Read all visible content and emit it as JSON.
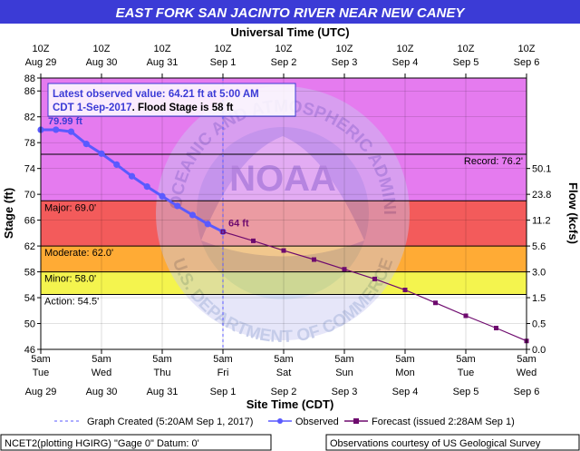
{
  "title": "EAST FORK SAN JACINTO RIVER NEAR NEW CANEY",
  "top_axis_title": "Universal Time (UTC)",
  "bottom_axis_title": "Site Time (CDT)",
  "left_axis_title": "Stage (ft)",
  "right_axis_title": "Flow (kcfs)",
  "top_ticks": [
    {
      "l1": "10Z",
      "l2": "Aug 29"
    },
    {
      "l1": "10Z",
      "l2": "Aug 30"
    },
    {
      "l1": "10Z",
      "l2": "Aug 31"
    },
    {
      "l1": "10Z",
      "l2": "Sep 1"
    },
    {
      "l1": "10Z",
      "l2": "Sep 2"
    },
    {
      "l1": "10Z",
      "l2": "Sep 3"
    },
    {
      "l1": "10Z",
      "l2": "Sep 4"
    },
    {
      "l1": "10Z",
      "l2": "Sep 5"
    },
    {
      "l1": "10Z",
      "l2": "Sep 6"
    }
  ],
  "bottom_ticks": [
    {
      "l1": "5am",
      "l2": "Tue",
      "l3": "Aug 29"
    },
    {
      "l1": "5am",
      "l2": "Wed",
      "l3": "Aug 30"
    },
    {
      "l1": "5am",
      "l2": "Thu",
      "l3": "Aug 31"
    },
    {
      "l1": "5am",
      "l2": "Fri",
      "l3": "Sep 1"
    },
    {
      "l1": "5am",
      "l2": "Sat",
      "l3": "Sep 2"
    },
    {
      "l1": "5am",
      "l2": "Sun",
      "l3": "Sep 3"
    },
    {
      "l1": "5am",
      "l2": "Mon",
      "l3": "Sep 4"
    },
    {
      "l1": "5am",
      "l2": "Tue",
      "l3": "Sep 5"
    },
    {
      "l1": "5am",
      "l2": "Wed",
      "l3": "Sep 6"
    }
  ],
  "flow_ticks": [
    {
      "label": "50.1",
      "stage": 74
    },
    {
      "label": "23.8",
      "stage": 70
    },
    {
      "label": "11.2",
      "stage": 66
    },
    {
      "label": "5.6",
      "stage": 62
    },
    {
      "label": "3.0",
      "stage": 58
    },
    {
      "label": "1.5",
      "stage": 54
    },
    {
      "label": "0.5",
      "stage": 50
    },
    {
      "label": "0.0",
      "stage": 46
    }
  ],
  "info_box": {
    "line1": "Latest observed value: 64.21 ft at 5:00 AM",
    "line2a": "CDT 1-Sep-2017",
    "line2b": ". Flood Stage is 58 ft"
  },
  "watermark": {
    "upper": "NATIONAL OCEANIC AND ATMOSPHERIC ADMINISTRATION",
    "lower": "U.S. DEPARTMENT OF COMMERCE",
    "center": "NOAA"
  },
  "legend": {
    "created": "Graph Created (5:20AM Sep 1, 2017)",
    "observed": "Observed",
    "forecast": "Forecast (issued 2:28AM Sep 1)"
  },
  "footer": {
    "left": "NCET2(plotting HGIRG) \"Gage 0\" Datum: 0'",
    "right": "Observations courtesy of US Geological Survey"
  },
  "colors": {
    "major": "#e57bef",
    "major_upper": "#d988f3",
    "moderate": "#f35b5b",
    "minor": "#ffab35",
    "action": "#f4f44e",
    "normal": "#ffffff",
    "observed": "#5a5aff",
    "forecast": "#6e0a6e",
    "title_bg": "#3b3bd6",
    "info_text": "#3b3bd6",
    "info_red": "#cc0000"
  },
  "chart_data": {
    "type": "line",
    "title": "EAST FORK SAN JACINTO RIVER NEAR NEW CANEY",
    "xlabel": "Site Time (CDT)",
    "ylabel": "Stage (ft)",
    "y2label": "Flow (kcfs)",
    "ylim": [
      46,
      88
    ],
    "xlim": [
      "2017-08-29 05:00",
      "2017-09-06 05:00"
    ],
    "yticks": [
      46,
      50,
      54,
      58,
      62,
      66,
      70,
      74,
      78,
      82,
      86,
      88
    ],
    "thresholds": [
      {
        "name": "Record",
        "label": "Record: 76.2'",
        "value": 76.2
      },
      {
        "name": "Major",
        "label": "Major: 69.0'",
        "value": 69.0
      },
      {
        "name": "Moderate",
        "label": "Moderate: 62.0'",
        "value": 62.0
      },
      {
        "name": "Minor",
        "label": "Minor: 58.0'",
        "value": 58.0
      },
      {
        "name": "Action",
        "label": "Action: 54.5'",
        "value": 54.5
      }
    ],
    "annotations": [
      {
        "label": "79.99 ft",
        "x": "2017-08-29 05:00",
        "y": 79.99
      },
      {
        "label": "64 ft",
        "x": "2017-09-01 05:00",
        "y": 64.21
      }
    ],
    "series": [
      {
        "name": "Observed",
        "x": [
          "2017-08-29 05:00",
          "2017-08-29 11:00",
          "2017-08-29 17:00",
          "2017-08-29 23:00",
          "2017-08-30 05:00",
          "2017-08-30 11:00",
          "2017-08-30 17:00",
          "2017-08-30 23:00",
          "2017-08-31 05:00",
          "2017-08-31 11:00",
          "2017-08-31 17:00",
          "2017-08-31 23:00",
          "2017-09-01 05:00"
        ],
        "y": [
          79.99,
          80.0,
          79.7,
          77.8,
          76.3,
          74.6,
          72.8,
          71.2,
          69.7,
          68.2,
          66.8,
          65.4,
          64.21
        ]
      },
      {
        "name": "Forecast",
        "x": [
          "2017-09-01 05:00",
          "2017-09-01 17:00",
          "2017-09-02 05:00",
          "2017-09-02 17:00",
          "2017-09-03 05:00",
          "2017-09-03 17:00",
          "2017-09-04 05:00",
          "2017-09-04 17:00",
          "2017-09-05 05:00",
          "2017-09-05 17:00",
          "2017-09-06 05:00"
        ],
        "y": [
          64.2,
          62.8,
          61.3,
          59.9,
          58.4,
          56.9,
          55.2,
          53.2,
          51.2,
          49.3,
          47.3
        ]
      }
    ]
  }
}
